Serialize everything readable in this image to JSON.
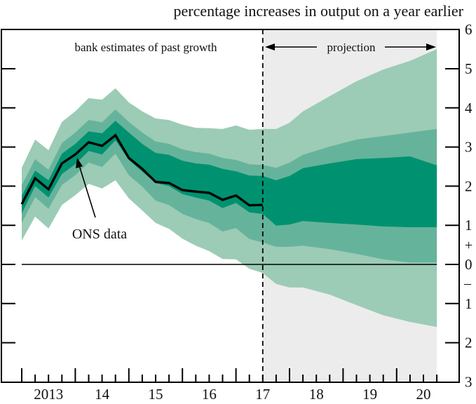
{
  "chart_data": {
    "type": "area",
    "subtype": "fan-chart",
    "title": "percentage increases in output on a year earlier",
    "xlabel": "",
    "ylabel": "",
    "x_tick_labels": [
      "2013",
      "14",
      "15",
      "16",
      "17",
      "18",
      "19",
      "20"
    ],
    "y_ticks": [
      {
        "value": 6,
        "label": "6"
      },
      {
        "value": 5,
        "label": "5"
      },
      {
        "value": 4,
        "label": "4"
      },
      {
        "value": 3,
        "label": "3"
      },
      {
        "value": 2,
        "label": "2"
      },
      {
        "value": 1,
        "label": "1"
      },
      {
        "value": 0,
        "label": "0"
      },
      {
        "value": -1,
        "label": "1"
      },
      {
        "value": -2,
        "label": "2"
      },
      {
        "value": -3,
        "label": "3"
      }
    ],
    "sign_labels": {
      "plus": "+",
      "minus": "–"
    },
    "ylim": [
      -3,
      6
    ],
    "x_range_years": [
      2012.6,
      2021.0
    ],
    "projection_start": 2017.5,
    "projection_end": 2020.75,
    "annotations": {
      "past": "bank estimates of past growth",
      "projection": "projection",
      "ons_label": "ONS data"
    },
    "colors": {
      "band_inner": "#009270",
      "band_middle": "#66b39b",
      "band_outer": "#9ccbb6",
      "projection_shade": "#ececec",
      "line": "#000000"
    },
    "ons_series": {
      "name": "ONS data",
      "x": [
        2013.0,
        2013.25,
        2013.5,
        2013.75,
        2014.0,
        2014.25,
        2014.5,
        2014.75,
        2015.0,
        2015.25,
        2015.5,
        2015.75,
        2016.0,
        2016.25,
        2016.5,
        2016.75,
        2017.0,
        2017.25,
        2017.5
      ],
      "values": [
        1.54,
        2.2,
        1.92,
        2.58,
        2.81,
        3.12,
        3.03,
        3.3,
        2.72,
        2.44,
        2.11,
        2.08,
        1.9,
        1.86,
        1.83,
        1.65,
        1.76,
        1.51,
        1.52
      ]
    },
    "bands": {
      "x": [
        2013.0,
        2013.25,
        2013.5,
        2013.75,
        2014.0,
        2014.25,
        2014.5,
        2014.75,
        2015.0,
        2015.25,
        2015.5,
        2015.75,
        2016.0,
        2016.25,
        2016.5,
        2016.75,
        2017.0,
        2017.25,
        2017.5,
        2017.75,
        2018.0,
        2018.25,
        2018.75,
        2019.25,
        2019.75,
        2020.25,
        2020.75
      ],
      "outer_upper": [
        2.47,
        3.19,
        2.92,
        3.64,
        3.91,
        4.25,
        4.21,
        4.5,
        4.14,
        3.91,
        3.73,
        3.69,
        3.57,
        3.49,
        3.48,
        3.46,
        3.55,
        3.44,
        3.46,
        3.46,
        3.62,
        3.91,
        4.3,
        4.68,
        4.98,
        5.2,
        5.5
      ],
      "middle_upper": [
        2.02,
        2.69,
        2.42,
        3.1,
        3.37,
        3.69,
        3.63,
        3.96,
        3.64,
        3.37,
        3.14,
        3.08,
        2.94,
        2.87,
        2.83,
        2.72,
        2.67,
        2.56,
        2.54,
        2.47,
        2.6,
        2.8,
        3.01,
        3.19,
        3.28,
        3.37,
        3.46
      ],
      "inner_upper": [
        1.75,
        2.4,
        2.15,
        2.83,
        3.08,
        3.4,
        3.35,
        3.67,
        3.37,
        3.08,
        2.85,
        2.8,
        2.65,
        2.58,
        2.55,
        2.44,
        2.38,
        2.27,
        2.26,
        2.15,
        2.26,
        2.46,
        2.58,
        2.69,
        2.72,
        2.76,
        2.53
      ],
      "inner_lower": [
        1.3,
        2.0,
        1.71,
        2.31,
        2.56,
        2.9,
        2.81,
        3.17,
        2.67,
        2.37,
        2.08,
        2.0,
        1.8,
        1.71,
        1.63,
        1.44,
        1.57,
        1.33,
        1.29,
        0.99,
        1.02,
        1.11,
        1.06,
        1.02,
        0.97,
        0.95,
        0.95
      ],
      "middle_lower": [
        1.06,
        1.72,
        1.42,
        2.03,
        2.28,
        2.6,
        2.49,
        2.83,
        2.28,
        1.99,
        1.63,
        1.52,
        1.29,
        1.16,
        1.06,
        0.84,
        0.93,
        0.65,
        0.56,
        0.45,
        0.45,
        0.48,
        0.39,
        0.27,
        0.13,
        0.05,
        0.05
      ],
      "outer_lower": [
        0.61,
        1.22,
        0.92,
        1.52,
        1.77,
        2.06,
        1.94,
        2.15,
        1.69,
        1.38,
        1.06,
        0.91,
        0.66,
        0.48,
        0.34,
        0.14,
        0.13,
        -0.11,
        -0.22,
        -0.5,
        -0.59,
        -0.59,
        -0.77,
        -1.04,
        -1.3,
        -1.47,
        -1.6
      ]
    }
  }
}
